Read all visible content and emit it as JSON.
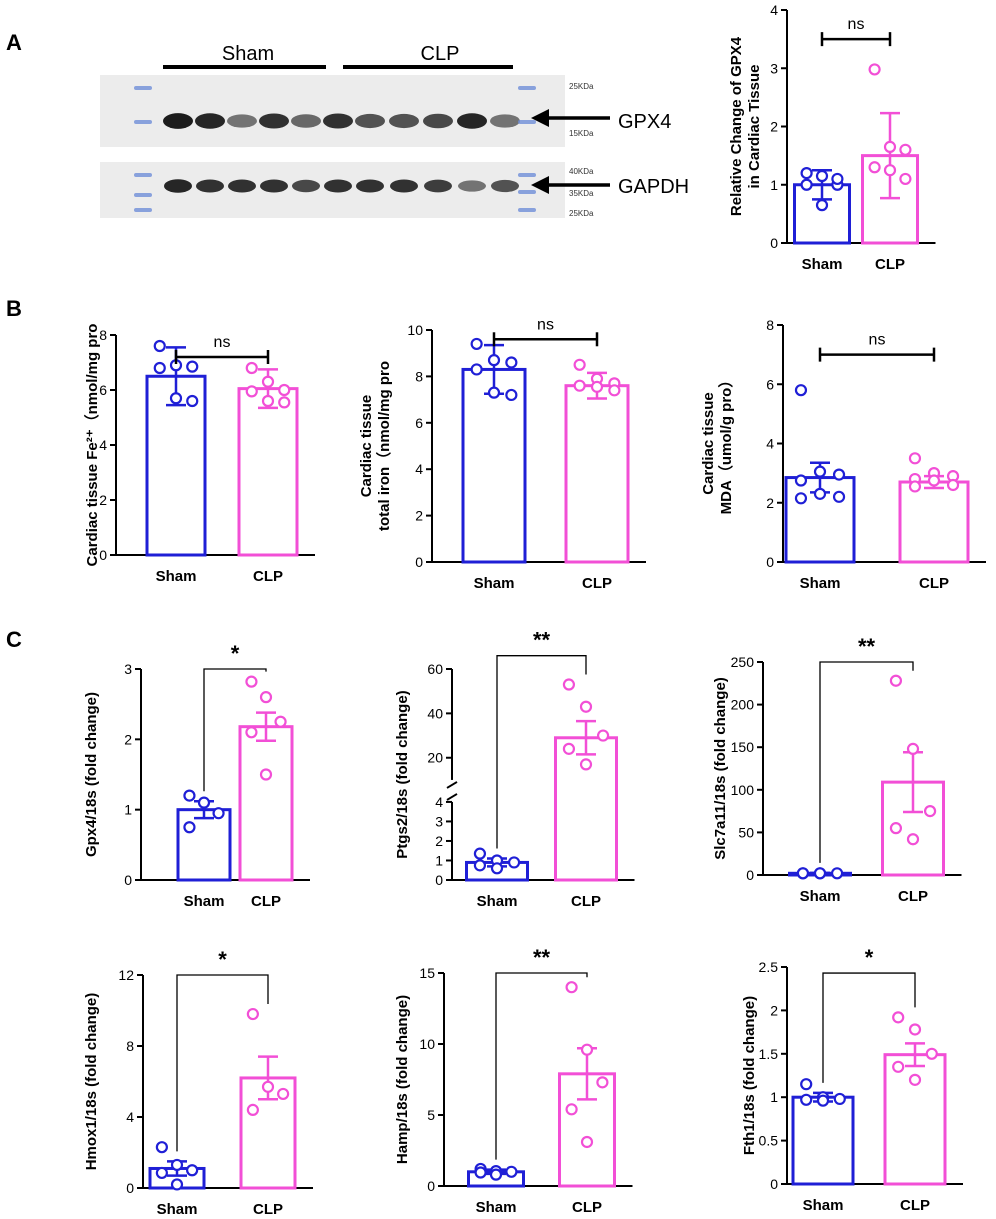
{
  "panels": {
    "a": "A",
    "b": "B",
    "c": "C"
  },
  "colors": {
    "sham": "#1f1fd6",
    "clp": "#f24fd6",
    "axis": "#000000",
    "band": "#111111",
    "ladder": "#6f8fd8",
    "membrane": "#ececec"
  },
  "blot": {
    "groups": [
      "Sham",
      "CLP"
    ],
    "targets": [
      "GPX4",
      "GAPDH"
    ],
    "kda_gpx4": [
      "25KDa",
      "15KDa"
    ],
    "kda_gapdh": [
      "40KDa",
      "35KDa",
      "25KDa"
    ],
    "gpx4_band_intensity": [
      0.95,
      0.9,
      0.55,
      0.85,
      0.6,
      0.85,
      0.7,
      0.7,
      0.75,
      0.9,
      0.55
    ],
    "gapdh_band_intensity": [
      0.9,
      0.85,
      0.85,
      0.85,
      0.75,
      0.85,
      0.85,
      0.85,
      0.8,
      0.55,
      0.7
    ]
  },
  "chart_data": [
    {
      "id": "a_gpx4_wb",
      "type": "bar",
      "title": "",
      "ylabel_lines": [
        "Relative Change of GPX4",
        "in Cardiac Tissue"
      ],
      "categories": [
        "Sham",
        "CLP"
      ],
      "ylim": [
        0,
        4
      ],
      "yticks": [
        0,
        1,
        2,
        3,
        4
      ],
      "means": [
        1.0,
        1.5
      ],
      "errors": [
        0.25,
        0.73
      ],
      "points": [
        [
          1.2,
          1.15,
          1.0,
          1.0,
          0.65,
          1.1
        ],
        [
          2.98,
          1.65,
          1.6,
          1.3,
          1.25,
          1.1
        ]
      ],
      "sig": "ns",
      "sig_style": "capped",
      "sig_y": 3.5,
      "scale": "linear"
    },
    {
      "id": "b_fe2",
      "type": "bar",
      "title": "",
      "ylabel_lines": [
        "Cardiac tissue Fe²⁺（nmol/mg pro"
      ],
      "categories": [
        "Sham",
        "CLP"
      ],
      "ylim": [
        0,
        8
      ],
      "yticks": [
        0,
        2,
        4,
        6,
        8
      ],
      "means": [
        6.5,
        6.05
      ],
      "errors": [
        1.05,
        0.7
      ],
      "points": [
        [
          7.6,
          6.9,
          6.85,
          6.8,
          5.7,
          5.6
        ],
        [
          6.8,
          6.3,
          6.0,
          5.95,
          5.6,
          5.55
        ]
      ],
      "sig": "ns",
      "sig_style": "capped",
      "sig_y": 7.2,
      "scale": "linear"
    },
    {
      "id": "b_iron",
      "type": "bar",
      "title": "",
      "ylabel_lines": [
        "Cardiac tissue",
        "total iron（nmol/mg pro"
      ],
      "categories": [
        "Sham",
        "CLP"
      ],
      "ylim": [
        0,
        10
      ],
      "yticks": [
        0,
        2,
        4,
        6,
        8,
        10
      ],
      "means": [
        8.3,
        7.6
      ],
      "errors": [
        1.05,
        0.55
      ],
      "points": [
        [
          9.4,
          8.7,
          8.6,
          8.3,
          7.3,
          7.2
        ],
        [
          8.5,
          7.9,
          7.7,
          7.6,
          7.55,
          7.4
        ]
      ],
      "sig": "ns",
      "sig_style": "capped",
      "sig_y": 9.6,
      "scale": "linear"
    },
    {
      "id": "b_mda",
      "type": "bar",
      "title": "",
      "ylabel_lines": [
        "Cardiac tissue",
        "MDA（umol/g pro）"
      ],
      "categories": [
        "Sham",
        "CLP"
      ],
      "ylim": [
        0,
        8
      ],
      "yticks": [
        0,
        2,
        4,
        6,
        8
      ],
      "means": [
        2.85,
        2.7
      ],
      "errors": [
        0.5,
        0.2
      ],
      "points": [
        [
          5.8,
          3.05,
          2.95,
          2.75,
          2.3,
          2.2,
          2.15
        ],
        [
          3.5,
          3.0,
          2.9,
          2.8,
          2.75,
          2.6,
          2.55
        ]
      ],
      "sig": "ns",
      "sig_style": "capped",
      "sig_y": 7.0,
      "scale": "linear"
    },
    {
      "id": "c_gpx4",
      "type": "bar",
      "title": "",
      "ylabel_lines": [
        "Gpx4/18s (fold change)"
      ],
      "categories": [
        "Sham",
        "CLP"
      ],
      "ylim": [
        0,
        3
      ],
      "yticks": [
        0,
        1,
        2,
        3
      ],
      "means": [
        1.0,
        2.18
      ],
      "errors": [
        0.12,
        0.2
      ],
      "points": [
        [
          1.2,
          1.1,
          0.95,
          0.75
        ],
        [
          2.82,
          2.6,
          2.25,
          2.1,
          1.5
        ]
      ],
      "sig": "*",
      "sig_style": "bracket",
      "sig_y": 3.0,
      "scale": "linear"
    },
    {
      "id": "c_ptgs2",
      "type": "bar",
      "title": "",
      "ylabel_lines": [
        "Ptgs2/18s (fold change)"
      ],
      "categories": [
        "Sham",
        "CLP"
      ],
      "ylim": [
        0,
        60
      ],
      "yticks": [
        0,
        1,
        2,
        3,
        4,
        20,
        40,
        60
      ],
      "means": [
        0.9,
        29.0
      ],
      "errors": [
        0.2,
        7.5
      ],
      "points": [
        [
          1.35,
          1.0,
          0.9,
          0.75,
          0.6
        ],
        [
          53.0,
          43.0,
          30.0,
          24.0,
          17.0
        ]
      ],
      "sig": "**",
      "sig_style": "bracket",
      "sig_y": 66.0,
      "scale": "broken",
      "break_low": 4,
      "break_high": 10
    },
    {
      "id": "c_slc7a11",
      "type": "bar",
      "title": "",
      "ylabel_lines": [
        "Slc7a11/18s (fold change)"
      ],
      "categories": [
        "Sham",
        "CLP"
      ],
      "ylim": [
        0,
        250
      ],
      "yticks": [
        0,
        50,
        100,
        150,
        200,
        250
      ],
      "means": [
        2.0,
        109.0
      ],
      "errors": [
        0.5,
        35.0
      ],
      "points": [
        [
          2,
          2,
          2,
          2,
          2
        ],
        [
          228,
          148,
          75,
          55,
          42
        ]
      ],
      "sig": "**",
      "sig_style": "bracket",
      "sig_y": 250,
      "scale": "linear"
    },
    {
      "id": "c_hmox1",
      "type": "bar",
      "title": "",
      "ylabel_lines": [
        "Hmox1/18s (fold change)"
      ],
      "categories": [
        "Sham",
        "CLP"
      ],
      "ylim": [
        0,
        12
      ],
      "yticks": [
        0,
        4,
        8,
        12
      ],
      "means": [
        1.1,
        6.2
      ],
      "errors": [
        0.4,
        1.2
      ],
      "points": [
        [
          2.3,
          1.3,
          1.0,
          0.85,
          0.2
        ],
        [
          9.8,
          5.7,
          5.3,
          4.4
        ]
      ],
      "sig": "*",
      "sig_style": "bracket",
      "sig_y": 12.0,
      "scale": "linear"
    },
    {
      "id": "c_hamp",
      "type": "bar",
      "title": "",
      "ylabel_lines": [
        "Hamp/18s (fold change)"
      ],
      "categories": [
        "Sham",
        "CLP"
      ],
      "ylim": [
        0,
        15
      ],
      "yticks": [
        0,
        5,
        10,
        15
      ],
      "means": [
        1.0,
        7.9
      ],
      "errors": [
        0.15,
        1.8
      ],
      "points": [
        [
          1.2,
          1.05,
          1.0,
          0.95,
          0.8
        ],
        [
          14.0,
          9.6,
          7.3,
          5.4,
          3.1
        ]
      ],
      "sig": "**",
      "sig_style": "bracket",
      "sig_y": 15.0,
      "scale": "linear"
    },
    {
      "id": "c_fth1",
      "type": "bar",
      "title": "",
      "ylabel_lines": [
        "Fth1/18s (fold change)"
      ],
      "categories": [
        "Sham",
        "CLP"
      ],
      "ylim": [
        0,
        2.5
      ],
      "yticks": [
        0,
        0.5,
        1.0,
        1.5,
        2.0,
        2.5
      ],
      "means": [
        1.0,
        1.49
      ],
      "errors": [
        0.05,
        0.13
      ],
      "points": [
        [
          1.15,
          1.0,
          0.98,
          0.97,
          0.96
        ],
        [
          1.92,
          1.78,
          1.5,
          1.35,
          1.2
        ]
      ],
      "sig": "*",
      "sig_style": "bracket",
      "sig_y": 2.43,
      "scale": "linear"
    }
  ]
}
